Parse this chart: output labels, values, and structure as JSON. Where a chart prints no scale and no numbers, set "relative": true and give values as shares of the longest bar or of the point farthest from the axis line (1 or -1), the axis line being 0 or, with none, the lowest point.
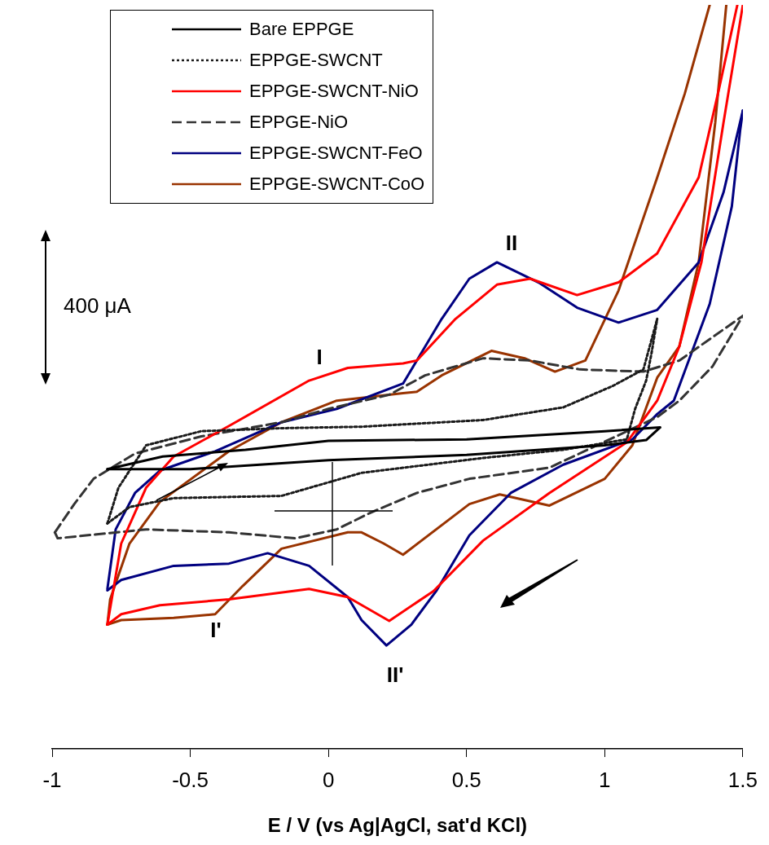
{
  "chart_data": {
    "type": "line",
    "relative": true,
    "xlabel": "E / V (vs Ag|AgCl, sat'd KCl)",
    "xlim": [
      -1,
      1.5
    ],
    "xticks": [
      -1,
      -0.5,
      0,
      0.5,
      1,
      1.5
    ],
    "tick_labels": "x",
    "grid": false,
    "legend": "top left",
    "marker": "none",
    "series": [
      {
        "name": "Bare EPPGE",
        "color": "#000000",
        "x": [
          -0.8,
          -0.6,
          -0.3,
          0,
          0.5,
          1.0,
          1.2
        ],
        "values": [
          0.376,
          0.393,
          0.402,
          0.414,
          0.416,
          0.427,
          0.432
        ]
      },
      {
        "color": "#000000",
        "x": [
          -0.8,
          -0.5,
          0,
          0.5,
          1.0,
          1.15,
          1.2
        ],
        "values": [
          0.376,
          0.376,
          0.388,
          0.395,
          0.408,
          0.415,
          0.432
        ]
      },
      {
        "name": "EPPGE-SWCNT",
        "color": "#1a1a1a",
        "line_style": "dotted",
        "x": [
          -0.8,
          -0.76,
          -0.66,
          -0.46,
          -0.17,
          0.12,
          0.56,
          0.85,
          1.03,
          1.14,
          1.19
        ],
        "values": [
          0.303,
          0.351,
          0.408,
          0.427,
          0.431,
          0.433,
          0.442,
          0.459,
          0.488,
          0.51,
          0.578
        ]
      },
      {
        "color": "#1a1a1a",
        "line_style": "dotted",
        "x": [
          -0.8,
          -0.72,
          -0.56,
          -0.17,
          0.12,
          0.56,
          0.85,
          1.08,
          1.11,
          1.15,
          1.17,
          1.19
        ],
        "values": [
          0.303,
          0.325,
          0.337,
          0.34,
          0.371,
          0.391,
          0.402,
          0.416,
          0.457,
          0.495,
          0.533,
          0.578
        ]
      },
      {
        "name": "EPPGE-SWCNT-NiO",
        "color": "#ff0000",
        "x": [
          -0.8,
          -0.75,
          -0.66,
          -0.56,
          -0.36,
          -0.07,
          0.07,
          0.27,
          0.32,
          0.46,
          0.61,
          0.73,
          0.9,
          1.05,
          1.19,
          1.34,
          1.41,
          1.48
        ],
        "values": [
          0.167,
          0.276,
          0.351,
          0.393,
          0.434,
          0.495,
          0.512,
          0.518,
          0.522,
          0.578,
          0.624,
          0.632,
          0.61,
          0.627,
          0.666,
          0.768,
          0.881,
          1
        ]
      },
      {
        "color": "#ff0000",
        "x": [
          -0.8,
          -0.75,
          -0.61,
          -0.36,
          -0.07,
          0.07,
          0.22,
          0.38,
          0.56,
          0.8,
          1.08,
          1.19,
          1.27,
          1.35,
          1.43,
          1.5
        ],
        "values": [
          0.167,
          0.181,
          0.193,
          0.201,
          0.215,
          0.204,
          0.172,
          0.212,
          0.28,
          0.344,
          0.412,
          0.468,
          0.541,
          0.654,
          0.842,
          1
        ]
      },
      {
        "name": "EPPGE-NiO",
        "color": "#333333",
        "line_style": "dashed",
        "x": [
          -0.99,
          -0.92,
          -0.85,
          -0.7,
          -0.46,
          -0.17,
          0,
          0.22,
          0.35,
          0.56,
          0.73,
          0.91,
          1.14,
          1.27,
          1.5
        ],
        "values": [
          0.291,
          0.329,
          0.363,
          0.397,
          0.42,
          0.439,
          0.457,
          0.476,
          0.502,
          0.525,
          0.522,
          0.51,
          0.507,
          0.522,
          0.582
        ]
      },
      {
        "color": "#333333",
        "line_style": "dashed",
        "x": [
          -0.99,
          -0.98,
          -0.66,
          -0.36,
          -0.12,
          0.03,
          0.15,
          0.32,
          0.51,
          0.8,
          1.19,
          1.27,
          1.39,
          1.5
        ],
        "values": [
          0.291,
          0.283,
          0.295,
          0.291,
          0.283,
          0.295,
          0.317,
          0.344,
          0.363,
          0.378,
          0.446,
          0.468,
          0.514,
          0.582
        ]
      },
      {
        "name": "EPPGE-SWCNT-FeO",
        "color": "#000080",
        "x": [
          -0.8,
          -0.77,
          -0.7,
          -0.61,
          -0.41,
          -0.17,
          0.03,
          0.27,
          0.41,
          0.51,
          0.61,
          0.76,
          0.9,
          1.05,
          1.19,
          1.34,
          1.43,
          1.5
        ],
        "values": [
          0.215,
          0.295,
          0.344,
          0.374,
          0.4,
          0.439,
          0.457,
          0.491,
          0.578,
          0.632,
          0.654,
          0.627,
          0.593,
          0.573,
          0.59,
          0.654,
          0.748,
          0.858
        ]
      },
      {
        "color": "#000080",
        "x": [
          -0.8,
          -0.75,
          -0.56,
          -0.36,
          -0.22,
          -0.07,
          0.07,
          0.12,
          0.21,
          0.3,
          0.39,
          0.51,
          0.66,
          0.85,
          1.1,
          1.19,
          1.25,
          1.38,
          1.46,
          1.49,
          1.5
        ],
        "values": [
          0.213,
          0.227,
          0.246,
          0.249,
          0.263,
          0.246,
          0.204,
          0.173,
          0.139,
          0.167,
          0.212,
          0.287,
          0.344,
          0.382,
          0.416,
          0.45,
          0.468,
          0.598,
          0.729,
          0.831,
          0.858
        ]
      },
      {
        "name": "EPPGE-SWCNT-CoO",
        "color": "#993300",
        "x": [
          -0.8,
          -0.79,
          -0.72,
          -0.61,
          -0.36,
          -0.17,
          0.03,
          0.27,
          0.32,
          0.41,
          0.59,
          0.71,
          0.82,
          0.93,
          1.05,
          1.19,
          1.29,
          1.38
        ],
        "values": [
          0.167,
          0.201,
          0.276,
          0.332,
          0.4,
          0.439,
          0.468,
          0.478,
          0.48,
          0.502,
          0.535,
          0.525,
          0.507,
          0.522,
          0.616,
          0.768,
          0.881,
          1
        ]
      },
      {
        "color": "#993300",
        "x": [
          -0.8,
          -0.75,
          -0.56,
          -0.41,
          -0.31,
          -0.17,
          0.07,
          0.12,
          0.2,
          0.27,
          0.51,
          0.62,
          0.8,
          1.0,
          1.1,
          1.19,
          1.27,
          1.34,
          1.4,
          1.44
        ],
        "values": [
          0.167,
          0.173,
          0.176,
          0.181,
          0.219,
          0.269,
          0.291,
          0.291,
          0.276,
          0.261,
          0.329,
          0.342,
          0.327,
          0.363,
          0.408,
          0.499,
          0.541,
          0.654,
          0.842,
          1
        ]
      }
    ],
    "annotations": [
      "400 μA",
      "I",
      "II",
      "I'",
      "II'"
    ]
  }
}
